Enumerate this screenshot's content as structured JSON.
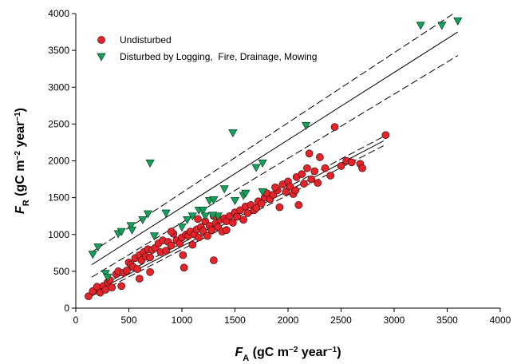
{
  "chart_data": {
    "type": "scatter",
    "xlabel": [
      "F",
      "A",
      " (gC m",
      "−2",
      " year",
      "−1",
      ")"
    ],
    "ylabel": [
      "F",
      "R",
      " (gC m",
      "−2",
      " year",
      "−1",
      ")"
    ],
    "xlim": [
      0,
      4000
    ],
    "xticks": [
      0,
      500,
      1000,
      1500,
      2000,
      2500,
      3000,
      3500,
      4000
    ],
    "ylim": [
      0,
      4000
    ],
    "yticks": [
      0,
      500,
      1000,
      1500,
      2000,
      2500,
      3000,
      3500,
      4000
    ],
    "legend": "upper left",
    "series": [
      {
        "name": "Undisturbed",
        "color": "#e3242b",
        "marker": "circle",
        "x": [
          120,
          160,
          200,
          230,
          260,
          280,
          300,
          320,
          340,
          380,
          400,
          430,
          450,
          480,
          500,
          520,
          540,
          560,
          580,
          600,
          620,
          640,
          660,
          680,
          700,
          720,
          750,
          780,
          800,
          820,
          850,
          870,
          900,
          920,
          950,
          980,
          1000,
          1020,
          1040,
          1060,
          1080,
          1100,
          1120,
          1140,
          1160,
          1180,
          1200,
          1220,
          1240,
          1260,
          1280,
          1300,
          1320,
          1340,
          1360,
          1380,
          1400,
          1420,
          1450,
          1480,
          1500,
          1520,
          1550,
          1580,
          1600,
          1620,
          1650,
          1680,
          1700,
          1720,
          1750,
          1780,
          1800,
          1830,
          1860,
          1900,
          1920,
          1950,
          1980,
          2000,
          2020,
          2050,
          2080,
          2100,
          2130,
          2150,
          2180,
          2200,
          2220,
          2250,
          2280,
          2300,
          2350,
          2400,
          2440,
          2500,
          2550,
          2600,
          2680,
          2700,
          2920,
          1010,
          1150,
          1300,
          1420,
          900,
          700,
          2070,
          1880,
          600
        ],
        "values": [
          160,
          230,
          290,
          210,
          300,
          250,
          350,
          380,
          280,
          460,
          500,
          300,
          480,
          510,
          620,
          590,
          560,
          680,
          530,
          720,
          650,
          760,
          700,
          800,
          690,
          790,
          820,
          880,
          760,
          920,
          780,
          900,
          850,
          1010,
          920,
          880,
          960,
          550,
          1000,
          980,
          1040,
          860,
          1000,
          1070,
          960,
          1100,
          1050,
          1180,
          980,
          1120,
          1060,
          650,
          1150,
          1100,
          1200,
          1040,
          1220,
          1180,
          1250,
          1160,
          1300,
          1240,
          1330,
          1200,
          1380,
          1290,
          1400,
          1330,
          1360,
          1450,
          1420,
          1500,
          1560,
          1480,
          1540,
          1600,
          1370,
          1680,
          1580,
          1720,
          1650,
          1550,
          1780,
          1400,
          1820,
          1690,
          1900,
          2100,
          1750,
          1860,
          1700,
          2050,
          1900,
          1800,
          2460,
          1930,
          2000,
          1980,
          1960,
          1900,
          2350,
          720,
          1210,
          1250,
          1060,
          1040,
          490,
          1600,
          1640,
          400
        ]
      },
      {
        "name": "Disturbed by Logging,  Fire, Drainage, Mowing",
        "color": "#16a05a",
        "marker": "triangle-down",
        "x": [
          160,
          210,
          280,
          300,
          400,
          430,
          520,
          530,
          630,
          680,
          700,
          740,
          850,
          1000,
          1100,
          1160,
          1200,
          1220,
          1260,
          1300,
          1340,
          1400,
          1480,
          1500,
          1580,
          1600,
          1700,
          1760,
          1760,
          2170,
          3250,
          3450,
          3600,
          1290,
          1050
        ],
        "values": [
          730,
          830,
          470,
          420,
          1010,
          1040,
          1120,
          1060,
          1200,
          1280,
          1970,
          980,
          1290,
          1100,
          1250,
          1330,
          1330,
          1250,
          1460,
          1470,
          1250,
          1620,
          2380,
          1460,
          1530,
          1560,
          1910,
          1970,
          1580,
          2480,
          3840,
          3840,
          3900,
          1260,
          1200
        ]
      }
    ],
    "fit_lines": [
      {
        "x": [
          150,
          3600
        ],
        "values": [
          590,
          3750
        ],
        "dashed": false
      },
      {
        "x": [
          150,
          3560
        ],
        "values": [
          760,
          4000
        ],
        "dashed": true
      },
      {
        "x": [
          150,
          3600
        ],
        "values": [
          420,
          3430
        ],
        "dashed": true
      },
      {
        "x": [
          150,
          2900
        ],
        "values": [
          200,
          2270
        ],
        "dashed": false
      },
      {
        "x": [
          150,
          2900
        ],
        "values": [
          235,
          2330
        ],
        "dashed": true
      },
      {
        "x": [
          150,
          2900
        ],
        "values": [
          165,
          2205
        ],
        "dashed": true
      }
    ]
  }
}
